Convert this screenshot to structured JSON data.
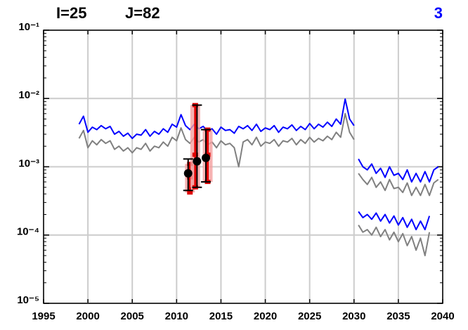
{
  "chart_data": {
    "type": "line",
    "title": "I=25",
    "subtitle": "J=82",
    "annotation": "3",
    "annotation_color": "#0000ff",
    "log_y": true,
    "grid": true,
    "xlim": [
      1995,
      2040
    ],
    "xticks": [
      1995,
      2000,
      2005,
      2010,
      2015,
      2020,
      2025,
      2030,
      2035,
      2040
    ],
    "ylim": [
      1e-05,
      0.1
    ],
    "yticks": [
      {
        "value": 1e-05,
        "label": "10⁻⁵"
      },
      {
        "value": 0.0001,
        "label": "10⁻⁴"
      },
      {
        "value": 0.001,
        "label": "10⁻³"
      },
      {
        "value": 0.01,
        "label": "10⁻²"
      },
      {
        "value": 0.1,
        "label": "10⁻¹"
      }
    ],
    "series": [
      {
        "color": "#808080",
        "start": 1999,
        "step": 0.5,
        "values": [
          0.0026,
          0.0034,
          0.0019,
          0.0024,
          0.0021,
          0.0025,
          0.0022,
          0.0024,
          0.0018,
          0.002,
          0.0017,
          0.0019,
          0.0016,
          0.0019,
          0.0018,
          0.0022,
          0.0017,
          0.002,
          0.0019,
          0.0023,
          0.002,
          0.0027,
          0.0024,
          0.0037,
          0.0025,
          0.0022,
          0.0027,
          0.0023,
          0.0025,
          0.0021,
          0.0023,
          0.0019,
          0.0024,
          0.0021,
          0.0022,
          0.0019,
          0.001,
          0.0023,
          0.0025,
          0.0021,
          0.0027,
          0.002,
          0.0023,
          0.0022,
          0.0025,
          0.002,
          0.0024,
          0.0023,
          0.0026,
          0.0021,
          0.0025,
          0.0022,
          0.0027,
          0.0023,
          0.0026,
          0.0024,
          0.0028,
          0.0025,
          0.0032,
          0.0027,
          0.006,
          0.0032,
          0.0025
        ]
      },
      {
        "color": "#0000ff",
        "start": 1999,
        "step": 0.5,
        "values": [
          0.0042,
          0.0055,
          0.0032,
          0.0038,
          0.0035,
          0.004,
          0.0036,
          0.0039,
          0.003,
          0.0033,
          0.0028,
          0.0031,
          0.0026,
          0.003,
          0.0029,
          0.0035,
          0.0028,
          0.0033,
          0.003,
          0.0036,
          0.0032,
          0.0042,
          0.0038,
          0.0058,
          0.004,
          0.0035,
          0.0042,
          0.0036,
          0.0039,
          0.0033,
          0.0036,
          0.003,
          0.0038,
          0.0034,
          0.0035,
          0.0031,
          0.0039,
          0.0036,
          0.004,
          0.0034,
          0.0042,
          0.0033,
          0.0037,
          0.0035,
          0.004,
          0.0032,
          0.0038,
          0.0036,
          0.0041,
          0.0034,
          0.0039,
          0.0035,
          0.0043,
          0.0036,
          0.0042,
          0.0038,
          0.0045,
          0.0039,
          0.005,
          0.0042,
          0.0098,
          0.005,
          0.004
        ]
      },
      {
        "color": "#808080",
        "start": 2030.5,
        "step": 0.5,
        "values": [
          0.0008,
          0.00065,
          0.00055,
          0.0007,
          0.0005,
          0.0006,
          0.00045,
          0.00065,
          0.00048,
          0.0005,
          0.00042,
          0.00058,
          0.00038,
          0.0005,
          0.00038,
          0.00055,
          0.00038,
          0.00058,
          0.00065
        ]
      },
      {
        "color": "#0000ff",
        "start": 2030.5,
        "step": 0.5,
        "values": [
          0.0013,
          0.001,
          0.0009,
          0.0011,
          0.0008,
          0.00095,
          0.0007,
          0.001,
          0.00075,
          0.0008,
          0.00065,
          0.0009,
          0.0006,
          0.0008,
          0.0006,
          0.00085,
          0.0006,
          0.0009,
          0.001
        ]
      },
      {
        "color": "#808080",
        "start": 2030.5,
        "step": 0.5,
        "values": [
          0.00014,
          0.00011,
          0.00012,
          0.0001,
          0.00013,
          9.5e-05,
          0.00012,
          8.5e-05,
          0.00011,
          8e-05,
          0.000105,
          7e-05,
          9.5e-05,
          6e-05,
          9e-05,
          5e-05,
          0.00011
        ]
      },
      {
        "color": "#0000ff",
        "start": 2030.5,
        "step": 0.5,
        "values": [
          0.00022,
          0.00018,
          0.0002,
          0.00017,
          0.00021,
          0.00016,
          0.0002,
          0.00015,
          0.00019,
          0.00014,
          0.00018,
          0.00013,
          0.00017,
          0.00012,
          0.00016,
          0.00012,
          0.00019
        ]
      }
    ],
    "observations": {
      "color": "#e00000",
      "band_color": "#f4a0a0",
      "x": [
        2011.5,
        2012.1,
        2013.5
      ],
      "values": [
        0.0007,
        0.0015,
        0.0015
      ],
      "low": [
        0.00042,
        0.0005,
        0.0006
      ],
      "high": [
        0.0011,
        0.008,
        0.0035
      ]
    },
    "estimates": {
      "color": "#000000",
      "x": [
        2011.3,
        2012.3,
        2013.3
      ],
      "values": [
        0.0008,
        0.0012,
        0.00135
      ],
      "low": [
        0.00045,
        0.0005,
        0.0006
      ],
      "high": [
        0.0013,
        0.008,
        0.0035
      ]
    }
  }
}
